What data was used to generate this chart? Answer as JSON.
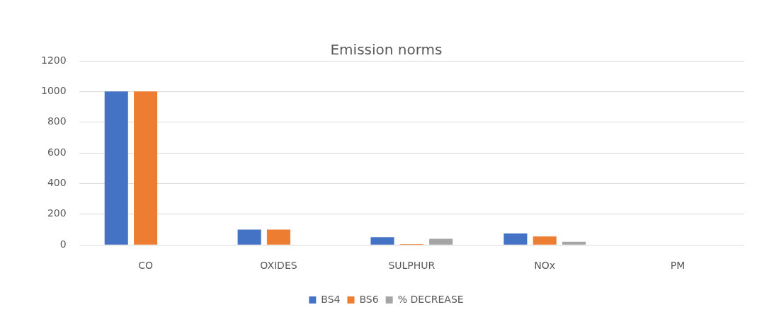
{
  "chart_data": {
    "type": "bar",
    "title": "Emission norms",
    "categories": [
      "CO",
      "OXIDES",
      "SULPHUR",
      "NOx",
      "PM"
    ],
    "series": [
      {
        "name": "BS4",
        "color": "#4472c4",
        "values": [
          1000,
          100,
          50,
          75,
          0
        ]
      },
      {
        "name": "BS6",
        "color": "#ed7d31",
        "values": [
          1000,
          100,
          5,
          55,
          0
        ]
      },
      {
        "name": "% DECREASE",
        "color": "#a5a5a5",
        "values": [
          0,
          0,
          40,
          20,
          0
        ]
      }
    ],
    "ylim": [
      0,
      1200
    ],
    "yticks": [
      0,
      200,
      400,
      600,
      800,
      1000,
      1200
    ],
    "grid": "y",
    "legend": "bottom"
  }
}
